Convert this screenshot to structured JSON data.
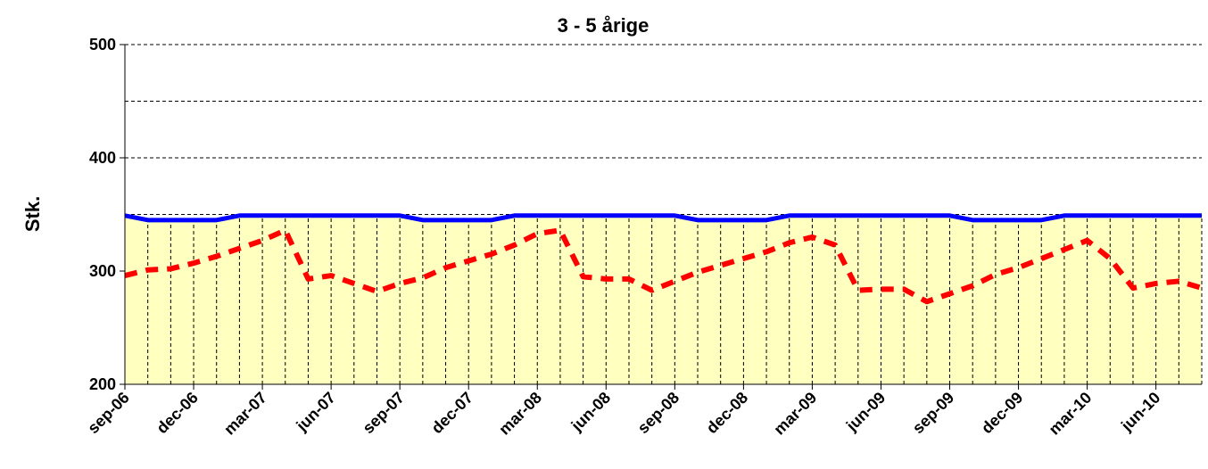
{
  "chart_data": {
    "type": "line",
    "title": "3 - 5 årige",
    "ylabel": "Stk.",
    "categories": [
      "sep-06",
      null,
      null,
      "dec-06",
      null,
      null,
      "mar-07",
      null,
      null,
      "jun-07",
      null,
      null,
      "sep-07",
      null,
      null,
      "dec-07",
      null,
      null,
      "mar-08",
      null,
      null,
      "jun-08",
      null,
      null,
      "sep-08",
      null,
      null,
      "dec-08",
      null,
      null,
      "mar-09",
      null,
      null,
      "jun-09",
      null,
      null,
      "sep-09",
      null,
      null,
      "dec-09",
      null,
      null,
      "mar-10",
      null,
      null,
      "jun-10",
      null,
      null
    ],
    "series": [
      {
        "color": "#0000ff",
        "fill": "#ffffc0",
        "dashed": false,
        "values": [
          349,
          345,
          345,
          345,
          345,
          349,
          349,
          349,
          349,
          349,
          349,
          349,
          349,
          345,
          345,
          345,
          345,
          349,
          349,
          349,
          349,
          349,
          349,
          349,
          349,
          345,
          345,
          345,
          345,
          349,
          349,
          349,
          349,
          349,
          349,
          349,
          349,
          345,
          345,
          345,
          345,
          349,
          349,
          349,
          349,
          349,
          349,
          349
        ]
      },
      {
        "color": "#ff0000",
        "dashed": true,
        "values": [
          296,
          301,
          302,
          307,
          313,
          320,
          327,
          336,
          293,
          296,
          289,
          282,
          289,
          294,
          303,
          309,
          315,
          323,
          333,
          336,
          295,
          293,
          293,
          283,
          291,
          299,
          305,
          311,
          317,
          325,
          330,
          323,
          283,
          284,
          284,
          273,
          280,
          287,
          297,
          303,
          311,
          319,
          327,
          311,
          285,
          289,
          291,
          285
        ]
      }
    ],
    "ylim": [
      200,
      500
    ],
    "yticks": [
      200,
      300,
      400,
      500
    ],
    "minor_yticks": [
      250,
      350,
      450
    ],
    "grid": true
  }
}
